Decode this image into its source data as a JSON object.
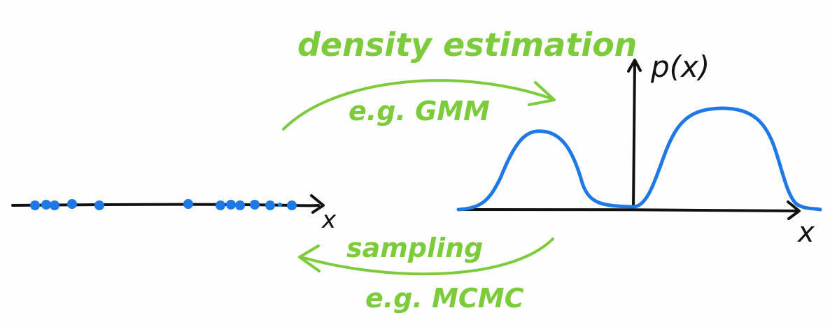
{
  "labels": {
    "top_arrow_title": "density estimation",
    "top_arrow_example": "e.g. GMM",
    "bottom_arrow_title": "sampling",
    "bottom_arrow_example": "e.g. MCMC",
    "left_axis_label": "x",
    "right_x_axis_label": "x",
    "right_y_axis_label": "p(x)"
  },
  "samples_count": 13,
  "colors": {
    "accent_green": "#7ccb3b",
    "density_blue": "#1e78e6",
    "ink": "#111111"
  }
}
